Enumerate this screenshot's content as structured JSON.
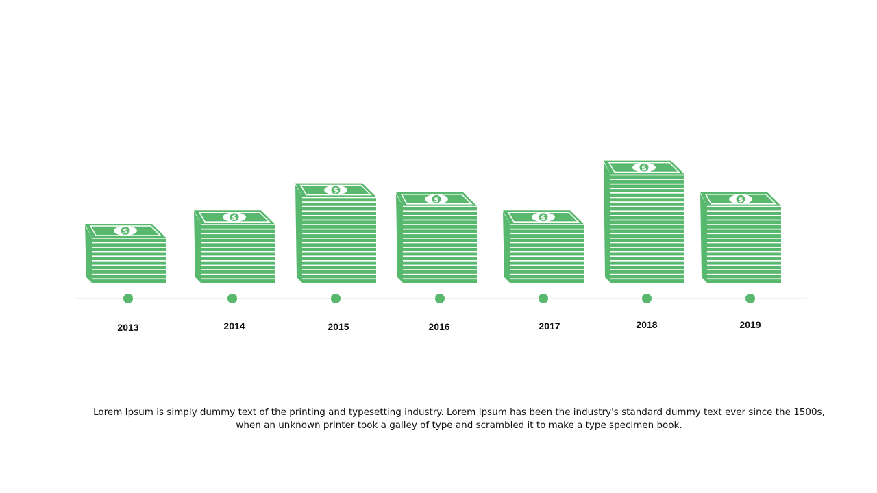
{
  "colors": {
    "bill_green": "#58b86e",
    "timeline_line": "#e6e6e6",
    "dot": "#58b86e",
    "text": "#111111"
  },
  "icon": "money-stack-icon",
  "chart_data": {
    "type": "bar",
    "categories": [
      "2013",
      "2014",
      "2015",
      "2016",
      "2017",
      "2018",
      "2019"
    ],
    "values": [
      10,
      13,
      19,
      17,
      13,
      24,
      17
    ],
    "title": "",
    "xlabel": "",
    "ylabel": ""
  },
  "caption": "Lorem Ipsum is simply dummy text of the printing and typesetting industry. Lorem Ipsum has been the industry's standard dummy text ever since the 1500s, when an unknown printer took a galley of type and scrambled it to make a type specimen book."
}
